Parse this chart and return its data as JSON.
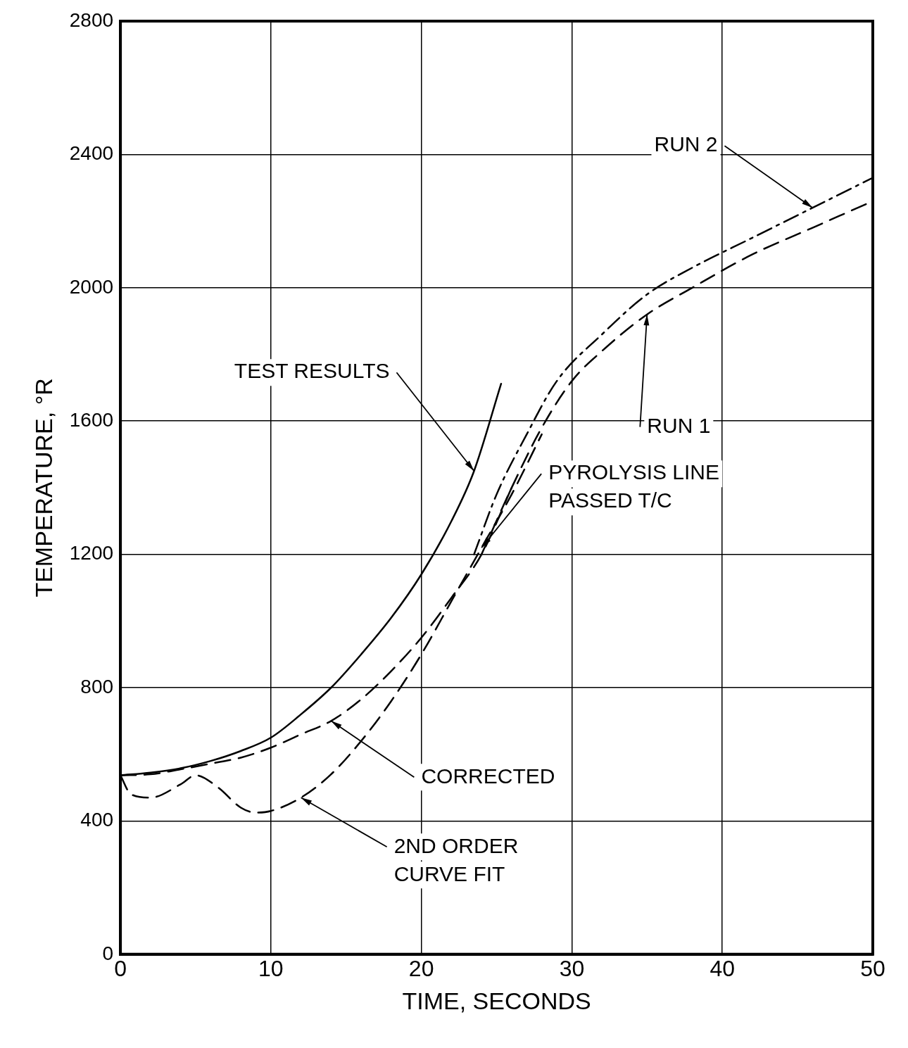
{
  "chart_data": {
    "type": "line",
    "xlabel": "TIME, SECONDS",
    "ylabel": "TEMPERATURE, °R",
    "xlim": [
      0,
      50
    ],
    "ylim": [
      0,
      2800
    ],
    "xticks": [
      0,
      10,
      20,
      30,
      40,
      50
    ],
    "yticks": [
      0,
      400,
      800,
      1200,
      1600,
      2000,
      2400,
      2800
    ],
    "grid": true,
    "legend": false,
    "marker": "none",
    "series": [
      {
        "color": "#000000",
        "line_style": "solid",
        "x": [
          0,
          2,
          4,
          6,
          8,
          10,
          12,
          14,
          16,
          18,
          20,
          22,
          23.5,
          25.3
        ],
        "values": [
          537,
          545,
          558,
          580,
          610,
          650,
          720,
          800,
          900,
          1010,
          1140,
          1300,
          1450,
          1712
        ]
      },
      {
        "color": "#000000",
        "line_style": "dashed",
        "x": [
          0,
          2,
          4,
          6,
          8,
          10,
          12,
          14,
          16,
          18,
          20,
          22,
          24,
          26
        ],
        "values": [
          537,
          540,
          555,
          572,
          590,
          620,
          660,
          700,
          765,
          850,
          950,
          1070,
          1200,
          1400
        ]
      },
      {
        "color": "#000000",
        "line_style": "dashed",
        "x": [
          0,
          0.7,
          2,
          4,
          5,
          6.5,
          8,
          9,
          10,
          12,
          14,
          16,
          18,
          20,
          22,
          24,
          26,
          28
        ],
        "values": [
          537,
          480,
          470,
          510,
          537,
          500,
          440,
          425,
          430,
          470,
          540,
          640,
          760,
          900,
          1060,
          1220,
          1380,
          1560
        ]
      },
      {
        "color": "#000000",
        "line_style": "dashed",
        "x": [
          24,
          26,
          28,
          30,
          32,
          35,
          38,
          42,
          46,
          50
        ],
        "values": [
          1200,
          1400,
          1580,
          1720,
          1810,
          1920,
          2000,
          2100,
          2180,
          2260
        ]
      },
      {
        "color": "#000000",
        "line_style": "dashdot",
        "x": [
          23.5,
          25,
          27,
          29,
          32,
          35,
          38,
          42,
          46,
          50
        ],
        "values": [
          1200,
          1380,
          1560,
          1720,
          1860,
          1980,
          2060,
          2150,
          2240,
          2330
        ]
      }
    ],
    "annotations": [
      {
        "text": "TEST RESULTS",
        "x": 23.5,
        "y": 1450
      },
      {
        "text": "RUN 2",
        "x": 46,
        "y": 2240
      },
      {
        "text": "RUN 1",
        "x": 35,
        "y": 1920
      },
      {
        "text": "PYROLYSIS LINE PASSED T/C",
        "x": 24,
        "y": 1220
      },
      {
        "text": "CORRECTED",
        "x": 14,
        "y": 700
      },
      {
        "text": "2ND ORDER CURVE FIT",
        "x": 12,
        "y": 470
      }
    ]
  }
}
